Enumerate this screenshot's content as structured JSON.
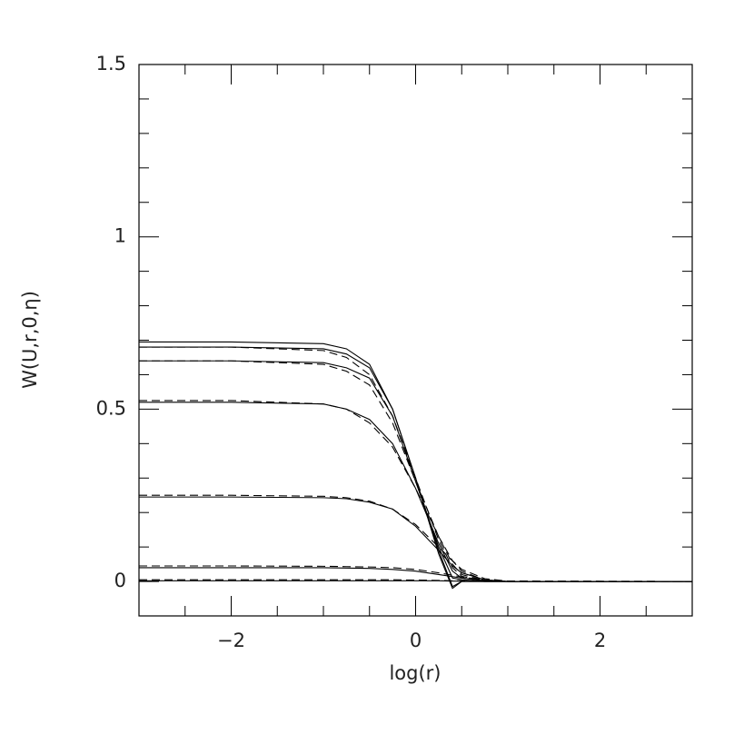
{
  "chart_data": {
    "type": "line",
    "xlabel": "log(r)",
    "ylabel": "W(U,r,0,η)",
    "x": [
      -3,
      -2,
      -1,
      -0.75,
      -0.5,
      -0.25,
      0,
      0.25,
      0.4,
      0.5,
      0.75,
      1,
      3
    ],
    "series": [
      {
        "color": "#000000",
        "dashed": false,
        "values": [
          0.695,
          0.695,
          0.69,
          0.675,
          0.63,
          0.5,
          0.3,
          0.08,
          -0.02,
          0.0,
          0,
          0,
          0
        ]
      },
      {
        "color": "#000000",
        "dashed": false,
        "values": [
          0.68,
          0.68,
          0.675,
          0.66,
          0.62,
          0.5,
          0.3,
          0.09,
          -0.015,
          0.0,
          0,
          0,
          0
        ]
      },
      {
        "color": "#000000",
        "dashed": false,
        "values": [
          0.64,
          0.64,
          0.635,
          0.62,
          0.59,
          0.48,
          0.29,
          0.1,
          0.01,
          0.005,
          0,
          0,
          0
        ]
      },
      {
        "color": "#000000",
        "dashed": false,
        "values": [
          0.52,
          0.52,
          0.515,
          0.5,
          0.47,
          0.4,
          0.27,
          0.11,
          0.03,
          0.01,
          0.002,
          0,
          0
        ]
      },
      {
        "color": "#000000",
        "dashed": false,
        "values": [
          0.245,
          0.245,
          0.243,
          0.24,
          0.23,
          0.21,
          0.16,
          0.09,
          0.045,
          0.025,
          0.005,
          0,
          0
        ]
      },
      {
        "color": "#000000",
        "dashed": false,
        "values": [
          0.04,
          0.04,
          0.04,
          0.039,
          0.038,
          0.035,
          0.03,
          0.02,
          0.014,
          0.01,
          0.002,
          0,
          0
        ]
      },
      {
        "color": "#000000",
        "dashed": false,
        "values": [
          0.002,
          0.002,
          0.002,
          0.002,
          0.002,
          0.002,
          0.002,
          0.002,
          0.001,
          0.001,
          0,
          0,
          0
        ]
      },
      {
        "color": "#000000",
        "dashed": true,
        "values": [
          0.68,
          0.68,
          0.67,
          0.65,
          0.6,
          0.48,
          0.3,
          0.12,
          0.04,
          0.015,
          0.002,
          0,
          0
        ]
      },
      {
        "color": "#000000",
        "dashed": true,
        "values": [
          0.64,
          0.64,
          0.63,
          0.61,
          0.57,
          0.46,
          0.29,
          0.13,
          0.05,
          0.02,
          0.003,
          0,
          0
        ]
      },
      {
        "color": "#000000",
        "dashed": true,
        "values": [
          0.525,
          0.525,
          0.515,
          0.5,
          0.46,
          0.39,
          0.27,
          0.13,
          0.06,
          0.03,
          0.004,
          0,
          0
        ]
      },
      {
        "color": "#000000",
        "dashed": true,
        "values": [
          0.25,
          0.25,
          0.247,
          0.243,
          0.233,
          0.21,
          0.165,
          0.1,
          0.06,
          0.035,
          0.008,
          0.001,
          0
        ]
      },
      {
        "color": "#000000",
        "dashed": true,
        "values": [
          0.045,
          0.045,
          0.044,
          0.043,
          0.042,
          0.04,
          0.035,
          0.025,
          0.018,
          0.013,
          0.004,
          0.001,
          0
        ]
      },
      {
        "color": "#000000",
        "dashed": true,
        "values": [
          0.005,
          0.005,
          0.005,
          0.005,
          0.005,
          0.005,
          0.004,
          0.003,
          0.002,
          0.002,
          0.001,
          0,
          0
        ]
      }
    ],
    "xlim": [
      -3,
      3
    ],
    "ylim": [
      -0.1,
      1.5
    ],
    "xticks": [
      {
        "value": -2,
        "label": "−2"
      },
      0,
      2
    ],
    "yticks": [
      0,
      0.5,
      1,
      1.5
    ],
    "xminorticks": [
      -2.5,
      -1.5,
      -1,
      -0.5,
      0.5,
      1,
      1.5,
      2.5
    ],
    "yminorticks": [
      0.1,
      0.2,
      0.3,
      0.4,
      0.6,
      0.7,
      0.8,
      0.9,
      1.1,
      1.2,
      1.3,
      1.4
    ],
    "grid": false
  }
}
